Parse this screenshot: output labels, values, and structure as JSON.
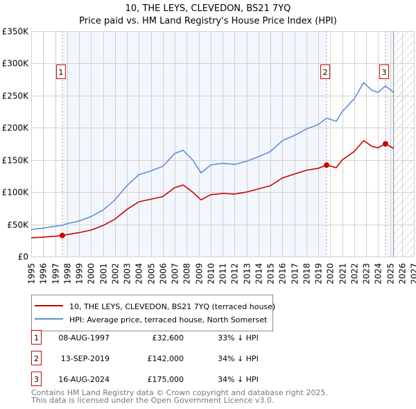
{
  "chart_data": {
    "type": "line",
    "title": "10, THE LEYS, CLEVEDON, BS21 7YQ",
    "subtitle": "Price paid vs. HM Land Registry's House Price Index (HPI)",
    "xlim": [
      1995,
      2027
    ],
    "ylim": [
      0,
      350000
    ],
    "y_ticks": [
      {
        "v": 0,
        "label": "£0"
      },
      {
        "v": 50000,
        "label": "£50K"
      },
      {
        "v": 100000,
        "label": "£100K"
      },
      {
        "v": 150000,
        "label": "£150K"
      },
      {
        "v": 200000,
        "label": "£200K"
      },
      {
        "v": 250000,
        "label": "£250K"
      },
      {
        "v": 300000,
        "label": "£300K"
      },
      {
        "v": 350000,
        "label": "£350K"
      }
    ],
    "x_ticks": [
      "1995",
      "1996",
      "1997",
      "1998",
      "1999",
      "2000",
      "2001",
      "2002",
      "2003",
      "2004",
      "2005",
      "2006",
      "2007",
      "2008",
      "2009",
      "2010",
      "2011",
      "2012",
      "2013",
      "2014",
      "2015",
      "2016",
      "2017",
      "2018",
      "2019",
      "2020",
      "2021",
      "2022",
      "2023",
      "2024",
      "2025",
      "2026",
      "2027"
    ],
    "grid": true,
    "shaded_ranges": [
      [
        1997.6,
        2019.7
      ],
      [
        2024.62,
        2025.3
      ]
    ],
    "forecast_hatch_from": 2025.3,
    "series": [
      {
        "name": "10, THE LEYS, CLEVEDON, BS21 7YQ (terraced house)",
        "color": "#cc0000",
        "x": [
          1995,
          1996,
          1997,
          1997.6,
          1998,
          1999,
          2000,
          2001,
          2002,
          2003,
          2004,
          2005,
          2006,
          2007,
          2007.7,
          2008.5,
          2009.2,
          2010,
          2011,
          2012,
          2013,
          2014,
          2015,
          2016,
          2017,
          2018,
          2019,
          2019.7,
          2020.5,
          2021,
          2022,
          2022.8,
          2023.5,
          2024,
          2024.62,
          2025.3
        ],
        "y": [
          29000,
          30000,
          31500,
          32600,
          34000,
          37000,
          41000,
          48000,
          58000,
          73000,
          85000,
          89000,
          93000,
          107000,
          111000,
          100000,
          88000,
          96000,
          98000,
          97000,
          100000,
          105000,
          110000,
          122000,
          128000,
          134000,
          137000,
          142000,
          138000,
          150000,
          163000,
          180000,
          171000,
          169000,
          175000,
          168000
        ]
      },
      {
        "name": "HPI: Average price, terraced house, North Somerset",
        "color": "#5b8fd4",
        "x": [
          1995,
          1996,
          1997,
          1997.6,
          1998,
          1999,
          2000,
          2001,
          2002,
          2003,
          2004,
          2005,
          2006,
          2007,
          2007.7,
          2008.5,
          2009.2,
          2010,
          2011,
          2012,
          2013,
          2014,
          2015,
          2016,
          2017,
          2018,
          2019,
          2019.7,
          2020.5,
          2021,
          2022,
          2022.8,
          2023.5,
          2024,
          2024.62,
          2025.3
        ],
        "y": [
          42000,
          44000,
          47000,
          48600,
          51000,
          55000,
          62000,
          72000,
          88000,
          110000,
          127000,
          133000,
          140000,
          160000,
          165000,
          150000,
          130000,
          142000,
          145000,
          143000,
          148000,
          155000,
          163000,
          180000,
          188000,
          198000,
          205000,
          215000,
          210000,
          225000,
          245000,
          270000,
          258000,
          255000,
          265000,
          255000
        ]
      }
    ],
    "sales": [
      {
        "n": "1",
        "x": 1997.6,
        "y": 32600,
        "date": "08-AUG-1997",
        "price": "£32,600",
        "delta": "33% ↓ HPI"
      },
      {
        "n": "2",
        "x": 2019.7,
        "y": 142000,
        "date": "13-SEP-2019",
        "price": "£142,000",
        "delta": "34% ↓ HPI"
      },
      {
        "n": "3",
        "x": 2024.62,
        "y": 175000,
        "date": "16-AUG-2024",
        "price": "£175,000",
        "delta": "34% ↓ HPI"
      }
    ]
  },
  "footer": {
    "line1": "Contains HM Land Registry data © Crown copyright and database right 2025.",
    "line2": "This data is licensed under the Open Government Licence v3.0."
  }
}
